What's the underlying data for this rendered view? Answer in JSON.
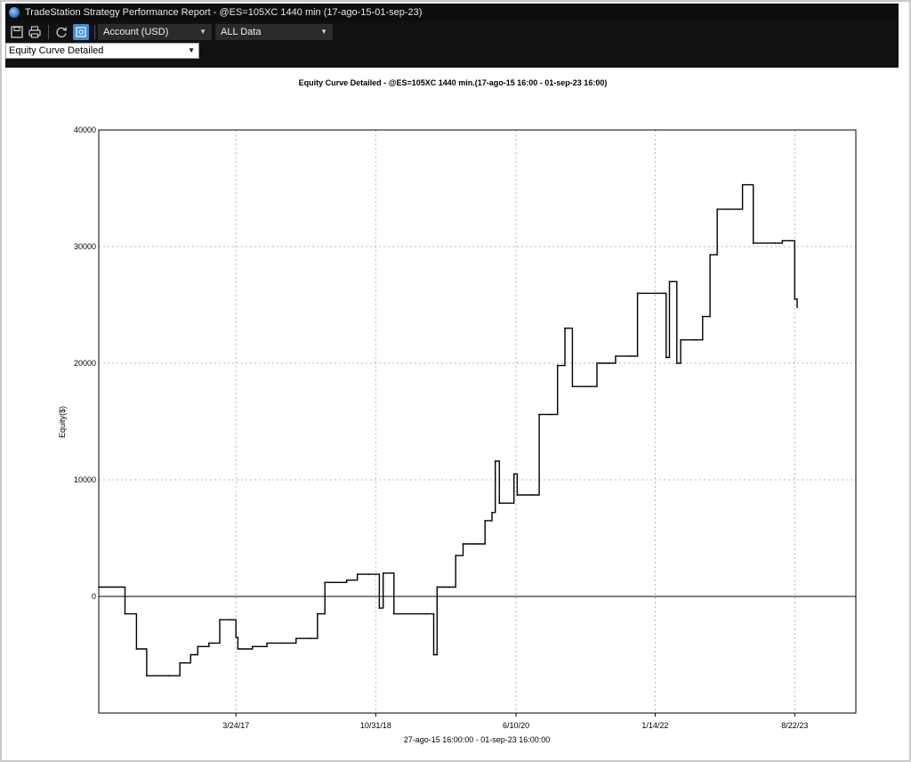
{
  "window": {
    "title": "TradeStation Strategy Performance Report - @ES=105XC 1440 min (17-ago-15-01-sep-23)"
  },
  "toolbar": {
    "icons": [
      "save-icon",
      "print-icon",
      "refresh-icon",
      "settings-icon"
    ],
    "account_label": "Account (USD)",
    "data_label": "ALL Data",
    "view_label": "Equity Curve Detailed"
  },
  "chart_data": {
    "type": "line",
    "title": "Equity Curve Detailed - @ES=105XC 1440 min.(17-ago-15 16:00 - 01-sep-23 16:00)",
    "xlabel": "27-ago-15 16:00:00 - 01-sep-23 16:00:00",
    "ylabel": "Equity($)",
    "ylim": [
      -10000,
      40000
    ],
    "yticks": [
      "40000",
      "30000",
      "20000",
      "10000",
      "0"
    ],
    "xticks": [
      "3/24/17",
      "10/31/18",
      "6/10/20",
      "1/14/22",
      "8/22/23"
    ],
    "x_range": [
      "2015-08-27",
      "2023-09-01"
    ],
    "grid": true,
    "zero_line": true,
    "series": [
      {
        "color": "#000000",
        "points": [
          [
            "2015-08-27",
            800
          ],
          [
            "2015-11-01",
            800
          ],
          [
            "2015-12-15",
            -1500
          ],
          [
            "2016-02-01",
            -4500
          ],
          [
            "2016-03-15",
            -6800
          ],
          [
            "2016-06-15",
            -6800
          ],
          [
            "2016-08-01",
            -5700
          ],
          [
            "2016-09-15",
            -5000
          ],
          [
            "2016-10-15",
            -4300
          ],
          [
            "2016-12-01",
            -4000
          ],
          [
            "2017-01-15",
            -2000
          ],
          [
            "2017-03-01",
            -2000
          ],
          [
            "2017-03-24",
            -3500
          ],
          [
            "2017-04-01",
            -4500
          ],
          [
            "2017-06-01",
            -4300
          ],
          [
            "2017-08-01",
            -4000
          ],
          [
            "2017-10-01",
            -4000
          ],
          [
            "2017-12-01",
            -3600
          ],
          [
            "2018-02-01",
            -3600
          ],
          [
            "2018-03-01",
            -1500
          ],
          [
            "2018-04-01",
            1200
          ],
          [
            "2018-05-15",
            1200
          ],
          [
            "2018-07-01",
            1400
          ],
          [
            "2018-08-15",
            1900
          ],
          [
            "2018-10-01",
            1900
          ],
          [
            "2018-11-15",
            -1000
          ],
          [
            "2018-12-01",
            2000
          ],
          [
            "2019-01-01",
            2000
          ],
          [
            "2019-01-15",
            -1500
          ],
          [
            "2019-06-01",
            -1500
          ],
          [
            "2019-07-01",
            -5000
          ],
          [
            "2019-07-15",
            800
          ],
          [
            "2019-08-15",
            800
          ],
          [
            "2019-10-01",
            3500
          ],
          [
            "2019-11-01",
            4500
          ],
          [
            "2020-01-01",
            4500
          ],
          [
            "2020-02-01",
            6500
          ],
          [
            "2020-03-01",
            7200
          ],
          [
            "2020-03-15",
            11600
          ],
          [
            "2020-04-01",
            8000
          ],
          [
            "2020-05-15",
            8000
          ],
          [
            "2020-06-01",
            10500
          ],
          [
            "2020-06-15",
            8700
          ],
          [
            "2020-08-15",
            8700
          ],
          [
            "2020-09-15",
            15600
          ],
          [
            "2020-11-01",
            15600
          ],
          [
            "2020-12-01",
            19800
          ],
          [
            "2021-01-01",
            23000
          ],
          [
            "2021-02-01",
            18000
          ],
          [
            "2021-04-01",
            18000
          ],
          [
            "2021-05-15",
            20000
          ],
          [
            "2021-07-01",
            20000
          ],
          [
            "2021-08-01",
            20600
          ],
          [
            "2021-10-01",
            20600
          ],
          [
            "2021-11-01",
            26000
          ],
          [
            "2022-02-15",
            26000
          ],
          [
            "2022-03-01",
            20500
          ],
          [
            "2022-03-15",
            27000
          ],
          [
            "2022-04-15",
            20000
          ],
          [
            "2022-05-01",
            22000
          ],
          [
            "2022-07-01",
            22000
          ],
          [
            "2022-08-01",
            24000
          ],
          [
            "2022-09-01",
            29300
          ],
          [
            "2022-10-01",
            33200
          ],
          [
            "2022-11-15",
            33200
          ],
          [
            "2023-01-15",
            35300
          ],
          [
            "2023-02-15",
            35300
          ],
          [
            "2023-03-01",
            30300
          ],
          [
            "2023-06-01",
            30300
          ],
          [
            "2023-07-01",
            30500
          ],
          [
            "2023-08-01",
            30500
          ],
          [
            "2023-08-22",
            25500
          ],
          [
            "2023-09-01",
            24800
          ]
        ]
      }
    ]
  }
}
